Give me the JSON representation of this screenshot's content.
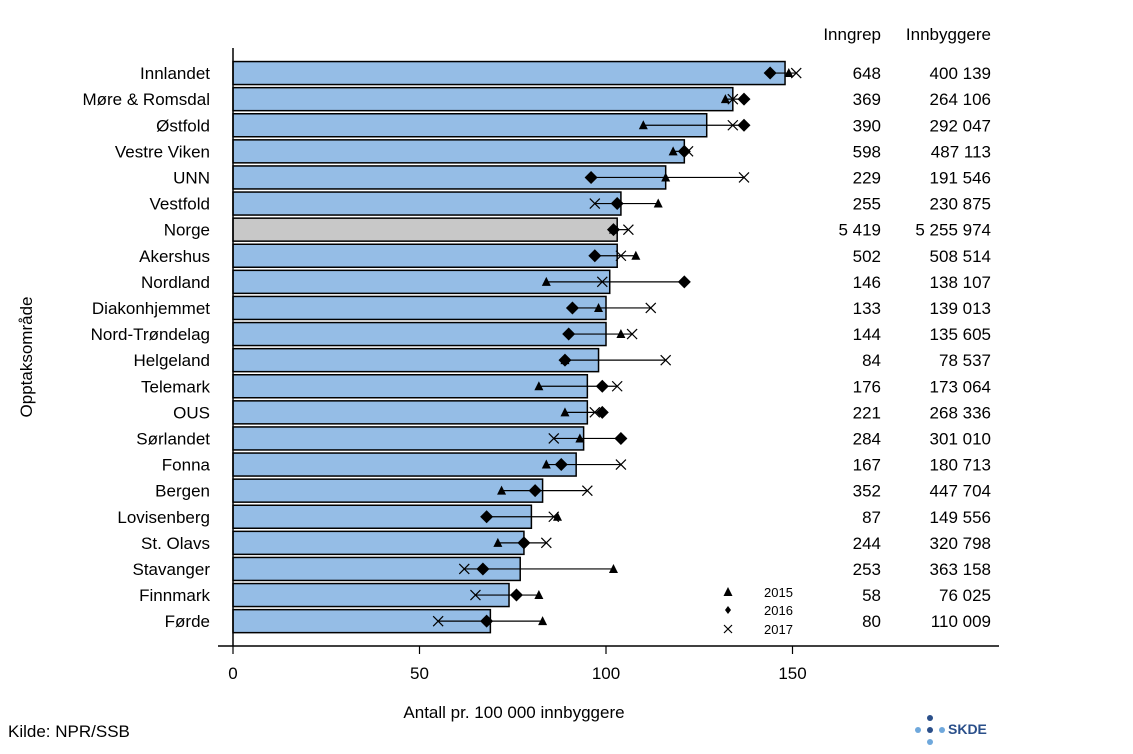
{
  "chart_data": {
    "type": "bar",
    "orientation": "horizontal",
    "title": "",
    "ylabel": "Opptaksområde",
    "xlabel": "Antall pr. 100 000 innbyggere",
    "xlim": [
      0,
      205
    ],
    "xticks": [
      0,
      50,
      100,
      150
    ],
    "columns": {
      "inngrep": "Inngrep",
      "innbyggere": "Innbyggere"
    },
    "categories": [
      "Innlandet",
      "Møre & Romsdal",
      "Østfold",
      "Vestre Viken",
      "UNN",
      "Vestfold",
      "Norge",
      "Akershus",
      "Nordland",
      "Diakonhjemmet",
      "Nord-Trøndelag",
      "Helgeland",
      "Telemark",
      "OUS",
      "Sørlandet",
      "Fonna",
      "Bergen",
      "Lovisenberg",
      "St. Olavs",
      "Stavanger",
      "Finnmark",
      "Førde"
    ],
    "values": [
      148,
      134,
      127,
      121,
      116,
      104,
      103,
      103,
      101,
      100,
      100,
      98,
      95,
      95,
      94,
      92,
      83,
      80,
      78,
      77,
      74,
      69
    ],
    "highlight": "Norge",
    "colors": {
      "bar": "#95bde6",
      "highlight": "#c8c8c8",
      "edge": "#000000"
    },
    "markers": {
      "y2015": [
        149,
        132,
        110,
        118,
        116,
        114,
        102,
        108,
        84,
        98,
        104,
        89,
        82,
        89,
        93,
        84,
        72,
        87,
        71,
        102,
        82,
        83
      ],
      "y2016": [
        144,
        137,
        137,
        121,
        96,
        103,
        102,
        97,
        121,
        91,
        90,
        89,
        99,
        99,
        104,
        88,
        81,
        68,
        78,
        67,
        76,
        68
      ],
      "y2017": [
        151,
        134,
        134,
        122,
        137,
        97,
        106,
        104,
        99,
        112,
        107,
        116,
        103,
        97,
        86,
        104,
        95,
        86,
        84,
        62,
        65,
        55
      ]
    },
    "legend": [
      {
        "label": "2015",
        "symbol": "triangle"
      },
      {
        "label": "2016",
        "symbol": "diamond"
      },
      {
        "label": "2017",
        "symbol": "cross"
      }
    ],
    "legend_position": "bottom-right",
    "inngrep": [
      "648",
      "369",
      "390",
      "598",
      "229",
      "255",
      "5 419",
      "502",
      "146",
      "133",
      "144",
      "84",
      "176",
      "221",
      "284",
      "167",
      "352",
      "87",
      "244",
      "253",
      "58",
      "80"
    ],
    "innbyggere": [
      "400 139",
      "264 106",
      "292 047",
      "487 113",
      "191 546",
      "230 875",
      "5 255 974",
      "508 514",
      "138 107",
      "139 013",
      "135 605",
      "78 537",
      "173 064",
      "268 336",
      "301 010",
      "180 713",
      "447 704",
      "149 556",
      "320 798",
      "363 158",
      "76 025",
      "110 009"
    ]
  },
  "source": "Kilde: NPR/SSB",
  "logo": "SKDE"
}
